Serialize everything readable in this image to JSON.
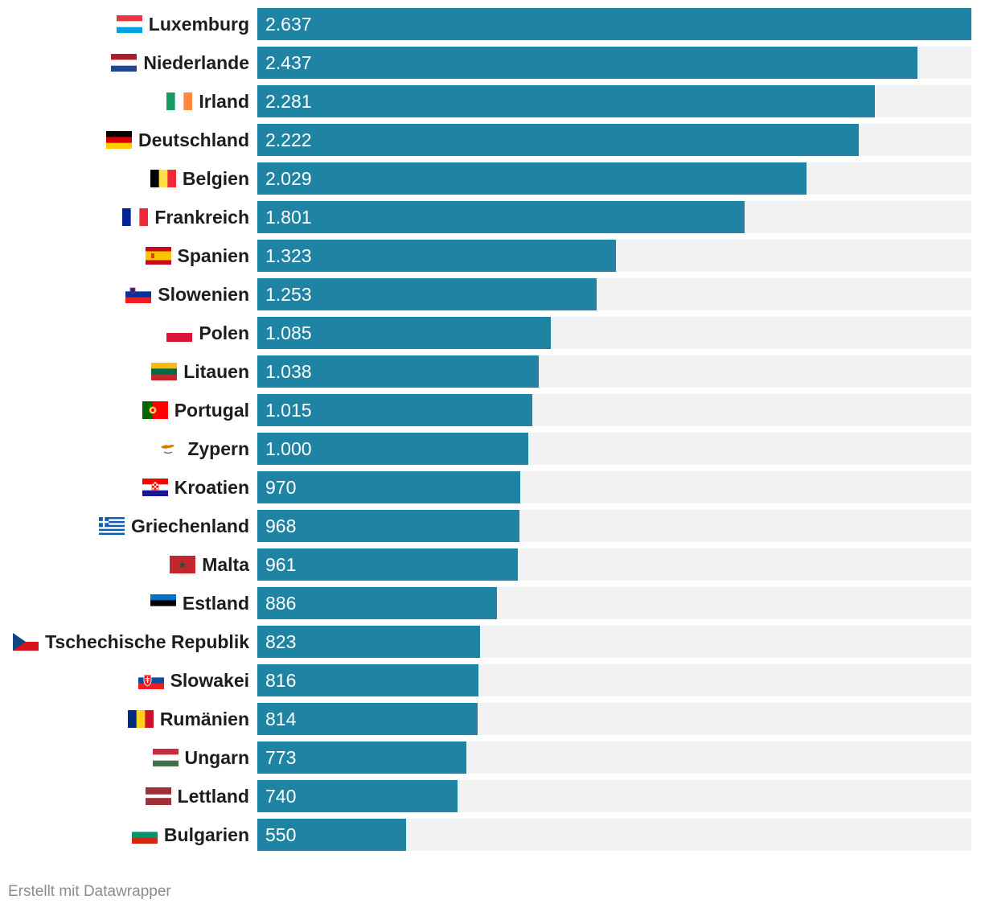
{
  "chart_data": {
    "type": "bar",
    "orientation": "horizontal",
    "categories": [
      "Luxemburg",
      "Niederlande",
      "Irland",
      "Deutschland",
      "Belgien",
      "Frankreich",
      "Spanien",
      "Slowenien",
      "Polen",
      "Litauen",
      "Portugal",
      "Zypern",
      "Kroatien",
      "Griechenland",
      "Malta",
      "Estland",
      "Tschechische Republik",
      "Slowakei",
      "Rumänien",
      "Ungarn",
      "Lettland",
      "Bulgarien"
    ],
    "values": [
      2637,
      2437,
      2281,
      2222,
      2029,
      1801,
      1323,
      1253,
      1085,
      1038,
      1015,
      1000,
      970,
      968,
      961,
      886,
      823,
      816,
      814,
      773,
      740,
      550
    ],
    "value_labels": [
      "2.637",
      "2.437",
      "2.281",
      "2.222",
      "2.029",
      "1.801",
      "1.323",
      "1.253",
      "1.085",
      "1.038",
      "1.015",
      "1.000",
      "970",
      "968",
      "961",
      "886",
      "823",
      "816",
      "814",
      "773",
      "740",
      "550"
    ],
    "flags": [
      "luxembourg-flag-icon",
      "netherlands-flag-icon",
      "ireland-flag-icon",
      "germany-flag-icon",
      "belgium-flag-icon",
      "france-flag-icon",
      "spain-flag-icon",
      "slovenia-flag-icon",
      "poland-flag-icon",
      "lithuania-flag-icon",
      "portugal-flag-icon",
      "cyprus-flag-icon",
      "croatia-flag-icon",
      "greece-flag-icon",
      "malta-flag-icon",
      "estonia-flag-icon",
      "czech-republic-flag-icon",
      "slovakia-flag-icon",
      "romania-flag-icon",
      "hungary-flag-icon",
      "latvia-flag-icon",
      "bulgaria-flag-icon"
    ],
    "xlim": [
      0,
      2637
    ],
    "title": "",
    "xlabel": "",
    "ylabel": "",
    "bar_color": "#1f84a3",
    "track_color": "#f2f2f2"
  },
  "footer": {
    "credit": "Erstellt mit Datawrapper"
  }
}
